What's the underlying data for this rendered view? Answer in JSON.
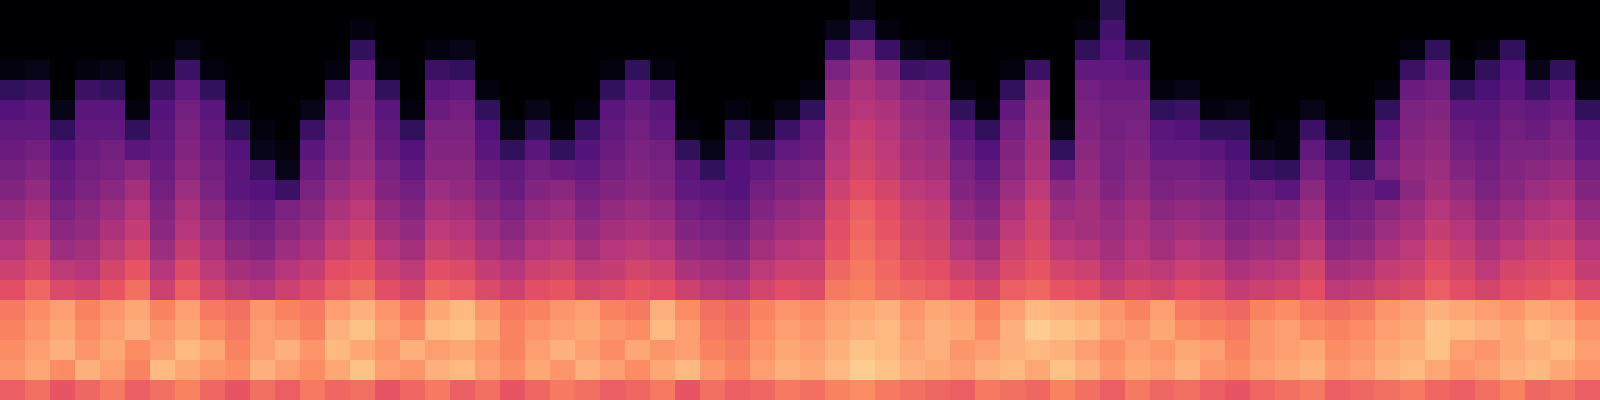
{
  "chart_data": {
    "type": "heatmap",
    "color": "magma",
    "tick_labels": false,
    "grid": false,
    "zlim": [
      0,
      100
    ],
    "z": [
      [
        66,
        70,
        64,
        68,
        72,
        66,
        70,
        74,
        68,
        64,
        70,
        66,
        72,
        68,
        70,
        64,
        68,
        72,
        66,
        70,
        64,
        68,
        72,
        70,
        66,
        68,
        72,
        64,
        70,
        66,
        68,
        72,
        70,
        74,
        76,
        72,
        70,
        68,
        66,
        72,
        70,
        68,
        74,
        70,
        66,
        72,
        68,
        70,
        66,
        64,
        68,
        70,
        72,
        66,
        68,
        70,
        72,
        68,
        66,
        70,
        74,
        68,
        70,
        66
      ],
      [
        78,
        82,
        76,
        84,
        80,
        74,
        86,
        82,
        78,
        76,
        84,
        80,
        76,
        82,
        88,
        80,
        78,
        84,
        86,
        80,
        76,
        82,
        78,
        84,
        80,
        76,
        82,
        86,
        78,
        74,
        80,
        84,
        82,
        86,
        90,
        88,
        84,
        82,
        80,
        84,
        86,
        82,
        88,
        84,
        78,
        82,
        80,
        84,
        78,
        76,
        80,
        82,
        84,
        78,
        80,
        84,
        86,
        82,
        78,
        80,
        84,
        86,
        82,
        78
      ],
      [
        76,
        80,
        84,
        78,
        82,
        76,
        80,
        86,
        82,
        74,
        80,
        84,
        78,
        86,
        82,
        78,
        84,
        80,
        82,
        78,
        74,
        80,
        84,
        80,
        76,
        82,
        78,
        80,
        74,
        72,
        78,
        82,
        80,
        84,
        88,
        86,
        82,
        84,
        78,
        80,
        84,
        86,
        84,
        80,
        76,
        80,
        78,
        82,
        80,
        74,
        78,
        80,
        82,
        76,
        78,
        82,
        84,
        88,
        80,
        78,
        82,
        84,
        86,
        80
      ],
      [
        74,
        78,
        82,
        76,
        80,
        84,
        78,
        82,
        76,
        72,
        80,
        78,
        74,
        84,
        88,
        80,
        76,
        86,
        88,
        82,
        74,
        78,
        80,
        82,
        78,
        76,
        86,
        80,
        72,
        70,
        76,
        80,
        78,
        82,
        84,
        86,
        80,
        84,
        82,
        76,
        84,
        90,
        88,
        86,
        80,
        78,
        82,
        76,
        74,
        72,
        78,
        80,
        76,
        74,
        76,
        80,
        82,
        88,
        86,
        84,
        82,
        86,
        84,
        78
      ],
      [
        72,
        76,
        80,
        74,
        78,
        82,
        74,
        80,
        72,
        70,
        78,
        74,
        72,
        80,
        84,
        78,
        72,
        82,
        86,
        78,
        72,
        74,
        78,
        80,
        74,
        72,
        84,
        76,
        70,
        68,
        74,
        78,
        76,
        80,
        82,
        84,
        78,
        82,
        80,
        74,
        80,
        86,
        84,
        82,
        78,
        74,
        80,
        72,
        70,
        68,
        74,
        76,
        72,
        70,
        72,
        78,
        80,
        84,
        82,
        80,
        78,
        82,
        80,
        74
      ],
      [
        62,
        68,
        60,
        58,
        64,
        70,
        56,
        66,
        58,
        52,
        50,
        56,
        60,
        66,
        70,
        62,
        58,
        68,
        66,
        60,
        56,
        62,
        64,
        58,
        60,
        64,
        62,
        56,
        52,
        50,
        58,
        62,
        60,
        72,
        74,
        70,
        68,
        66,
        62,
        58,
        66,
        68,
        64,
        62,
        56,
        60,
        58,
        62,
        60,
        54,
        56,
        58,
        62,
        52,
        54,
        58,
        60,
        66,
        62,
        58,
        62,
        64,
        66,
        60
      ],
      [
        56,
        60,
        52,
        50,
        58,
        64,
        50,
        60,
        52,
        46,
        44,
        50,
        54,
        62,
        64,
        56,
        52,
        62,
        60,
        54,
        50,
        56,
        58,
        52,
        54,
        58,
        56,
        48,
        46,
        44,
        52,
        56,
        56,
        68,
        72,
        68,
        64,
        62,
        56,
        52,
        60,
        64,
        58,
        56,
        50,
        54,
        52,
        56,
        54,
        48,
        50,
        52,
        58,
        46,
        48,
        54,
        56,
        62,
        58,
        52,
        58,
        60,
        62,
        54
      ],
      [
        50,
        56,
        44,
        46,
        52,
        58,
        44,
        54,
        48,
        40,
        38,
        44,
        48,
        56,
        60,
        50,
        46,
        56,
        54,
        48,
        44,
        50,
        52,
        46,
        50,
        52,
        50,
        42,
        40,
        38,
        46,
        50,
        52,
        64,
        70,
        66,
        60,
        58,
        50,
        46,
        56,
        60,
        52,
        50,
        46,
        50,
        46,
        50,
        48,
        42,
        44,
        46,
        52,
        40,
        42,
        48,
        52,
        58,
        54,
        48,
        52,
        56,
        58,
        50
      ],
      [
        46,
        50,
        40,
        42,
        48,
        54,
        40,
        50,
        44,
        36,
        34,
        40,
        44,
        52,
        56,
        46,
        42,
        52,
        50,
        44,
        40,
        46,
        48,
        42,
        46,
        48,
        46,
        38,
        36,
        34,
        42,
        46,
        48,
        62,
        68,
        64,
        58,
        56,
        46,
        42,
        52,
        58,
        48,
        46,
        44,
        48,
        44,
        46,
        44,
        38,
        40,
        42,
        48,
        36,
        38,
        44,
        48,
        54,
        50,
        44,
        48,
        52,
        54,
        46
      ],
      [
        42,
        46,
        36,
        40,
        44,
        50,
        38,
        48,
        40,
        32,
        30,
        36,
        40,
        48,
        52,
        42,
        38,
        48,
        46,
        40,
        36,
        42,
        44,
        38,
        42,
        44,
        42,
        34,
        32,
        30,
        38,
        42,
        44,
        60,
        66,
        62,
        56,
        54,
        42,
        38,
        48,
        56,
        44,
        46,
        42,
        46,
        40,
        42,
        40,
        34,
        36,
        38,
        44,
        32,
        34,
        40,
        44,
        50,
        46,
        40,
        44,
        48,
        50,
        42
      ],
      [
        38,
        42,
        32,
        36,
        40,
        46,
        34,
        44,
        36,
        28,
        26,
        20,
        36,
        44,
        48,
        38,
        34,
        44,
        42,
        36,
        32,
        38,
        40,
        34,
        38,
        40,
        38,
        30,
        28,
        26,
        34,
        38,
        40,
        56,
        62,
        58,
        52,
        50,
        38,
        34,
        44,
        52,
        40,
        44,
        38,
        42,
        36,
        38,
        36,
        30,
        32,
        28,
        40,
        30,
        32,
        28,
        40,
        46,
        42,
        36,
        40,
        44,
        46,
        38
      ],
      [
        35,
        38,
        30,
        34,
        36,
        40,
        32,
        40,
        34,
        28,
        20,
        4,
        32,
        40,
        44,
        36,
        30,
        40,
        40,
        32,
        30,
        34,
        32,
        30,
        34,
        38,
        36,
        28,
        18,
        26,
        30,
        34,
        36,
        52,
        58,
        54,
        48,
        46,
        36,
        30,
        40,
        48,
        32,
        42,
        36,
        40,
        34,
        34,
        32,
        28,
        20,
        18,
        34,
        28,
        20,
        36,
        42,
        44,
        38,
        34,
        38,
        40,
        42,
        34
      ],
      [
        32,
        34,
        26,
        32,
        34,
        28,
        30,
        38,
        32,
        26,
        4,
        2,
        28,
        36,
        42,
        32,
        26,
        38,
        38,
        28,
        18,
        28,
        18,
        26,
        32,
        36,
        34,
        18,
        4,
        24,
        20,
        30,
        32,
        50,
        56,
        52,
        46,
        44,
        32,
        26,
        38,
        46,
        18,
        40,
        36,
        38,
        30,
        30,
        28,
        24,
        4,
        2,
        30,
        18,
        4,
        32,
        40,
        42,
        34,
        32,
        36,
        36,
        38,
        30
      ],
      [
        30,
        30,
        18,
        30,
        30,
        18,
        28,
        36,
        30,
        18,
        2,
        0,
        20,
        34,
        40,
        30,
        18,
        36,
        36,
        26,
        4,
        18,
        2,
        20,
        30,
        34,
        30,
        2,
        0,
        18,
        4,
        20,
        30,
        48,
        54,
        50,
        44,
        42,
        28,
        18,
        34,
        44,
        4,
        38,
        34,
        36,
        28,
        26,
        18,
        18,
        0,
        2,
        20,
        4,
        2,
        28,
        38,
        40,
        32,
        30,
        34,
        32,
        36,
        28
      ],
      [
        26,
        28,
        4,
        28,
        28,
        2,
        26,
        34,
        28,
        2,
        0,
        0,
        4,
        30,
        38,
        28,
        2,
        32,
        34,
        18,
        0,
        4,
        0,
        2,
        28,
        32,
        28,
        0,
        0,
        2,
        0,
        4,
        18,
        46,
        50,
        48,
        42,
        40,
        18,
        2,
        30,
        42,
        0,
        36,
        34,
        34,
        18,
        20,
        2,
        4,
        0,
        0,
        4,
        0,
        0,
        18,
        36,
        38,
        28,
        28,
        32,
        30,
        32,
        18
      ],
      [
        18,
        20,
        0,
        20,
        18,
        0,
        20,
        30,
        18,
        0,
        0,
        0,
        0,
        20,
        36,
        18,
        0,
        28,
        30,
        2,
        0,
        0,
        0,
        0,
        18,
        28,
        20,
        0,
        0,
        0,
        0,
        0,
        2,
        42,
        48,
        44,
        38,
        36,
        2,
        0,
        18,
        38,
        0,
        34,
        32,
        32,
        2,
        4,
        0,
        0,
        0,
        0,
        0,
        0,
        0,
        2,
        32,
        34,
        18,
        24,
        28,
        20,
        28,
        2
      ],
      [
        2,
        4,
        0,
        2,
        4,
        0,
        2,
        20,
        2,
        0,
        0,
        0,
        0,
        2,
        30,
        2,
        0,
        20,
        18,
        0,
        0,
        0,
        0,
        0,
        2,
        18,
        2,
        0,
        0,
        0,
        0,
        0,
        0,
        36,
        44,
        38,
        20,
        22,
        0,
        0,
        2,
        20,
        0,
        30,
        30,
        28,
        0,
        0,
        0,
        0,
        0,
        0,
        0,
        0,
        0,
        0,
        20,
        30,
        2,
        18,
        26,
        4,
        18,
        0
      ],
      [
        0,
        0,
        0,
        0,
        0,
        0,
        0,
        4,
        0,
        0,
        0,
        0,
        0,
        0,
        18,
        0,
        0,
        2,
        4,
        0,
        0,
        0,
        0,
        0,
        0,
        0,
        0,
        0,
        0,
        0,
        0,
        0,
        0,
        20,
        36,
        20,
        4,
        2,
        0,
        0,
        0,
        0,
        0,
        18,
        26,
        18,
        0,
        0,
        0,
        0,
        0,
        0,
        0,
        0,
        0,
        0,
        2,
        18,
        0,
        2,
        18,
        0,
        0,
        0
      ],
      [
        0,
        0,
        0,
        0,
        0,
        0,
        0,
        0,
        0,
        0,
        0,
        0,
        0,
        0,
        2,
        0,
        0,
        0,
        0,
        0,
        0,
        0,
        0,
        0,
        0,
        0,
        0,
        0,
        0,
        0,
        0,
        0,
        0,
        4,
        18,
        2,
        0,
        0,
        0,
        0,
        0,
        0,
        0,
        2,
        22,
        0,
        0,
        0,
        0,
        0,
        0,
        0,
        0,
        0,
        0,
        0,
        0,
        0,
        0,
        0,
        0,
        0,
        0,
        0
      ],
      [
        0,
        0,
        0,
        0,
        0,
        0,
        0,
        0,
        0,
        0,
        0,
        0,
        0,
        0,
        0,
        0,
        0,
        0,
        0,
        0,
        0,
        0,
        0,
        0,
        0,
        0,
        0,
        0,
        0,
        0,
        0,
        0,
        0,
        0,
        4,
        0,
        0,
        0,
        0,
        0,
        0,
        0,
        0,
        0,
        16,
        0,
        0,
        0,
        0,
        0,
        0,
        0,
        0,
        0,
        0,
        0,
        0,
        0,
        0,
        0,
        0,
        0,
        0,
        0
      ]
    ]
  }
}
